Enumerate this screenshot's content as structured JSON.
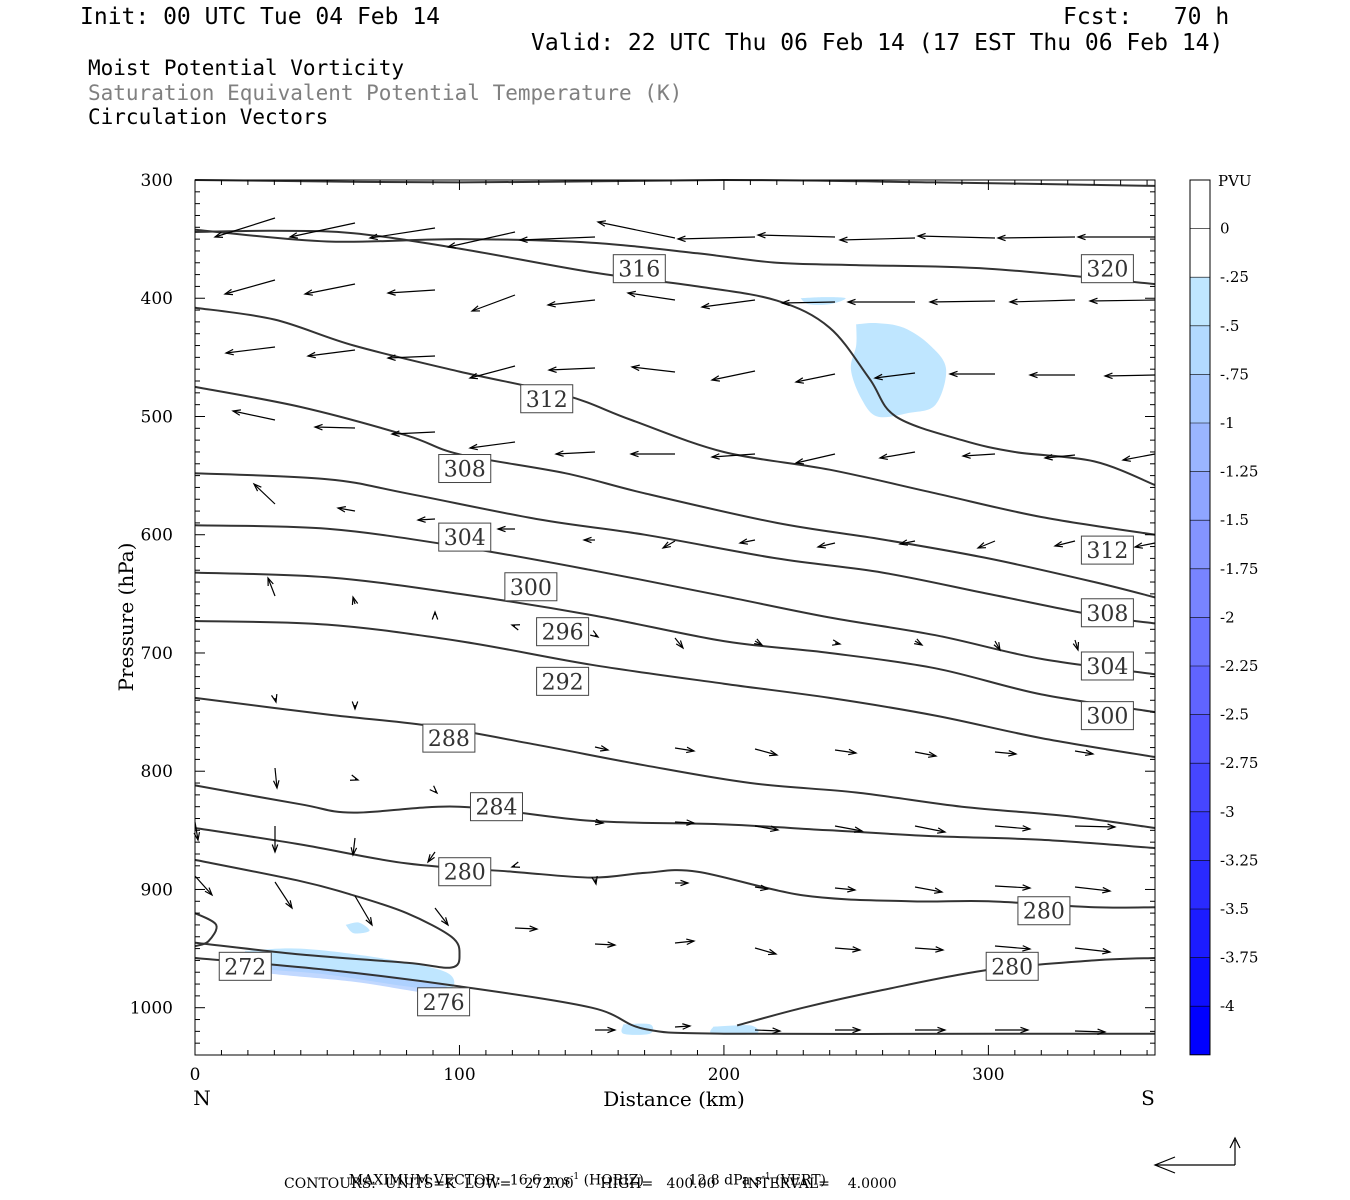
{
  "header": {
    "init": "Init: 00 UTC Tue 04 Feb 14",
    "fcst": "Fcst:   70 h",
    "valid": "Valid: 22 UTC Thu 06 Feb 14 (17 EST Thu 06 Feb 14)"
  },
  "fields": [
    {
      "label": "Moist Potential Vorticity",
      "color": "#000000"
    },
    {
      "label": "Saturation Equivalent Potential Temperature (K)",
      "color": "#808080"
    },
    {
      "label": "Circulation Vectors",
      "color": "#000000"
    }
  ],
  "colorbar": {
    "unit": "PVU",
    "levels": [
      "0",
      "-.25",
      "-.5",
      "-.75",
      "-1",
      "-1.25",
      "-1.5",
      "-1.75",
      "-2",
      "-2.25",
      "-2.5",
      "-2.75",
      "-3",
      "-3.25",
      "-3.5",
      "-3.75",
      "-4"
    ],
    "colors": [
      "#ffffff",
      "#ffffff",
      "#bfe6ff",
      "#b2d9ff",
      "#a6c8ff",
      "#9ab5ff",
      "#8fa5ff",
      "#8494ff",
      "#7884ff",
      "#6c74ff",
      "#6064ff",
      "#5454ff",
      "#4646ff",
      "#3838ff",
      "#2a2aff",
      "#1c1cff",
      "#0e0eff",
      "#0000ff"
    ]
  },
  "footer": {
    "max_vector_label": "MAXIMUM VECTOR:",
    "horiz_value": "16.6 m s",
    "horiz_unit": "(HORIZ)",
    "vert_value": "12.8 dPa s",
    "vert_unit": "(VERT)",
    "exponent": "-1",
    "contours": "CONTOURS:  UNITS=K  LOW=   272.00      HIGH=   400.00      INTERVAL=    4.0000"
  },
  "chart_data": {
    "type": "line",
    "xlabel": "Distance (km)",
    "ylabel": "Pressure (hPa)",
    "x_ticks": [
      0,
      100,
      200,
      300
    ],
    "y_ticks": [
      300,
      400,
      500,
      600,
      700,
      800,
      900,
      1000
    ],
    "xlim": [
      0,
      363
    ],
    "ylim": [
      300,
      1040
    ],
    "left_end_label": "N",
    "right_end_label": "S",
    "contour_labels": [
      {
        "text": "316",
        "x": 168,
        "y": 375
      },
      {
        "text": "320",
        "x": 345,
        "y": 375
      },
      {
        "text": "312",
        "x": 133,
        "y": 485
      },
      {
        "text": "308",
        "x": 102,
        "y": 544
      },
      {
        "text": "304",
        "x": 102,
        "y": 602
      },
      {
        "text": "312",
        "x": 345,
        "y": 613
      },
      {
        "text": "300",
        "x": 127,
        "y": 644
      },
      {
        "text": "296",
        "x": 139,
        "y": 682
      },
      {
        "text": "308",
        "x": 345,
        "y": 666
      },
      {
        "text": "292",
        "x": 139,
        "y": 724
      },
      {
        "text": "304",
        "x": 345,
        "y": 711
      },
      {
        "text": "300",
        "x": 345,
        "y": 753
      },
      {
        "text": "288",
        "x": 96,
        "y": 772
      },
      {
        "text": "284",
        "x": 114,
        "y": 830
      },
      {
        "text": "280",
        "x": 102,
        "y": 885
      },
      {
        "text": "280",
        "x": 321,
        "y": 918
      },
      {
        "text": "272",
        "x": 19,
        "y": 965
      },
      {
        "text": "280",
        "x": 309,
        "y": 965
      },
      {
        "text": "276",
        "x": 94,
        "y": 995
      }
    ],
    "series": [
      {
        "values": [
          [
            0,
            300
          ],
          [
            100,
            302
          ],
          [
            200,
            300
          ],
          [
            280,
            302
          ],
          [
            363,
            305
          ]
        ]
      },
      {
        "values": [
          [
            0,
            342
          ],
          [
            50,
            352
          ],
          [
            100,
            350
          ],
          [
            150,
            353
          ],
          [
            190,
            362
          ],
          [
            220,
            370
          ],
          [
            250,
            372
          ],
          [
            300,
            375
          ],
          [
            363,
            388
          ]
        ]
      },
      {
        "values": [
          [
            0,
            344
          ],
          [
            30,
            343
          ],
          [
            60,
            345
          ],
          [
            100,
            358
          ],
          [
            150,
            378
          ],
          [
            190,
            390
          ],
          [
            220,
            402
          ],
          [
            240,
            425
          ],
          [
            255,
            468
          ],
          [
            265,
            500
          ],
          [
            290,
            520
          ],
          [
            310,
            530
          ],
          [
            340,
            538
          ],
          [
            363,
            558
          ]
        ]
      },
      {
        "values": [
          [
            0,
            408
          ],
          [
            30,
            418
          ],
          [
            60,
            440
          ],
          [
            100,
            462
          ],
          [
            140,
            482
          ],
          [
            165,
            503
          ],
          [
            200,
            530
          ],
          [
            240,
            545
          ],
          [
            280,
            565
          ],
          [
            320,
            585
          ],
          [
            363,
            600
          ]
        ]
      },
      {
        "values": [
          [
            0,
            475
          ],
          [
            40,
            492
          ],
          [
            80,
            516
          ],
          [
            100,
            532
          ],
          [
            140,
            548
          ],
          [
            170,
            565
          ],
          [
            220,
            590
          ],
          [
            260,
            604
          ],
          [
            300,
            620
          ],
          [
            340,
            640
          ],
          [
            363,
            653
          ]
        ]
      },
      {
        "values": [
          [
            0,
            548
          ],
          [
            50,
            553
          ],
          [
            80,
            565
          ],
          [
            130,
            587
          ],
          [
            170,
            600
          ],
          [
            220,
            620
          ],
          [
            260,
            632
          ],
          [
            300,
            650
          ],
          [
            340,
            668
          ],
          [
            363,
            675
          ]
        ]
      },
      {
        "values": [
          [
            0,
            592
          ],
          [
            50,
            595
          ],
          [
            100,
            610
          ],
          [
            150,
            630
          ],
          [
            200,
            652
          ],
          [
            240,
            670
          ],
          [
            280,
            685
          ],
          [
            320,
            705
          ],
          [
            363,
            718
          ]
        ]
      },
      {
        "values": [
          [
            0,
            632
          ],
          [
            50,
            636
          ],
          [
            100,
            650
          ],
          [
            150,
            668
          ],
          [
            200,
            690
          ],
          [
            240,
            700
          ],
          [
            280,
            713
          ],
          [
            320,
            735
          ],
          [
            363,
            750
          ]
        ]
      },
      {
        "values": [
          [
            0,
            673
          ],
          [
            50,
            676
          ],
          [
            100,
            690
          ],
          [
            150,
            710
          ],
          [
            200,
            726
          ],
          [
            240,
            738
          ],
          [
            280,
            753
          ],
          [
            320,
            772
          ],
          [
            363,
            788
          ]
        ]
      },
      {
        "values": [
          [
            0,
            738
          ],
          [
            50,
            752
          ],
          [
            90,
            762
          ],
          [
            130,
            778
          ],
          [
            170,
            795
          ],
          [
            210,
            810
          ],
          [
            250,
            818
          ],
          [
            290,
            830
          ],
          [
            330,
            838
          ],
          [
            363,
            848
          ]
        ]
      },
      {
        "values": [
          [
            0,
            812
          ],
          [
            40,
            828
          ],
          [
            60,
            835
          ],
          [
            100,
            830
          ],
          [
            150,
            842
          ],
          [
            200,
            845
          ],
          [
            240,
            850
          ],
          [
            280,
            855
          ],
          [
            320,
            858
          ],
          [
            363,
            865
          ]
        ]
      },
      {
        "values": [
          [
            0,
            848
          ],
          [
            40,
            862
          ],
          [
            80,
            878
          ],
          [
            120,
            885
          ],
          [
            150,
            890
          ],
          [
            170,
            886
          ],
          [
            190,
            885
          ],
          [
            230,
            905
          ],
          [
            270,
            910
          ],
          [
            300,
            910
          ],
          [
            340,
            915
          ],
          [
            363,
            915
          ]
        ]
      },
      {
        "values": [
          [
            0,
            875
          ],
          [
            40,
            893
          ],
          [
            60,
            905
          ],
          [
            80,
            920
          ],
          [
            97,
            940
          ],
          [
            100,
            955
          ],
          [
            97,
            966
          ],
          [
            80,
            962
          ],
          [
            40,
            955
          ],
          [
            0,
            945
          ]
        ]
      },
      {
        "values": [
          [
            0,
            920
          ],
          [
            8,
            930
          ],
          [
            5,
            944
          ],
          [
            0,
            948
          ]
        ]
      },
      {
        "values": [
          [
            0,
            958
          ],
          [
            50,
            968
          ],
          [
            100,
            982
          ],
          [
            150,
            1000
          ],
          [
            170,
            1018
          ],
          [
            200,
            1022
          ],
          [
            300,
            1022
          ],
          [
            363,
            1022
          ]
        ]
      },
      {
        "values": [
          [
            205,
            1015
          ],
          [
            230,
            1000
          ],
          [
            260,
            985
          ],
          [
            300,
            968
          ],
          [
            340,
            960
          ],
          [
            363,
            958
          ]
        ]
      }
    ],
    "pv_shading_level": "-.5"
  }
}
